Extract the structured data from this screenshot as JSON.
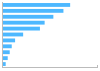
{
  "chart_data": {
    "type": "bar",
    "orientation": "horizontal",
    "values": [
      100,
      90,
      75,
      62,
      55,
      30,
      18,
      13,
      10,
      7,
      4
    ],
    "color": "#4db8ff",
    "xlim": [
      0,
      140
    ],
    "tick_labels": false
  }
}
